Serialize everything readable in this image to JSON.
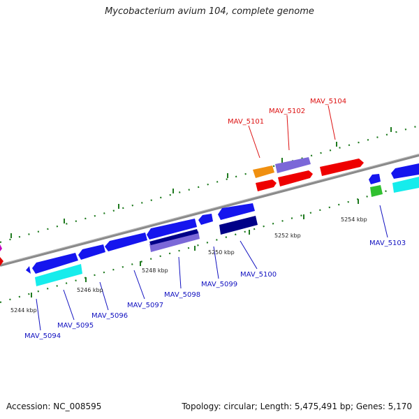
{
  "title": "Mycobacterium avium 104, complete genome",
  "footer": {
    "accession": "Accession: NC_008595",
    "stats": "Topology: circular; Length: 5,475,491 bp; Genes: 5,170"
  },
  "colors": {
    "backbone": "#888888",
    "tick": "#1e7a1e",
    "forward_label": "#dd1111",
    "reverse_label": "#1010c0"
  },
  "ticks": [
    "5244 kbp",
    "5246 kbp",
    "5248 kbp",
    "5250 kbp",
    "5252 kbp",
    "5254 kbp"
  ],
  "genes": [
    {
      "label": "MAV_5101",
      "color": "#dd1111"
    },
    {
      "label": "MAV_5102",
      "color": "#dd1111"
    },
    {
      "label": "MAV_5104",
      "color": "#dd1111"
    },
    {
      "label": "MAV_5094",
      "color": "#1010c0"
    },
    {
      "label": "MAV_5095",
      "color": "#1010c0"
    },
    {
      "label": "MAV_5096",
      "color": "#1010c0"
    },
    {
      "label": "MAV_5097",
      "color": "#1010c0"
    },
    {
      "label": "MAV_5098",
      "color": "#1010c0"
    },
    {
      "label": "MAV_5099",
      "color": "#1010c0"
    },
    {
      "label": "MAV_5100",
      "color": "#1010c0"
    },
    {
      "label": "MAV_5103",
      "color": "#1010c0"
    }
  ]
}
